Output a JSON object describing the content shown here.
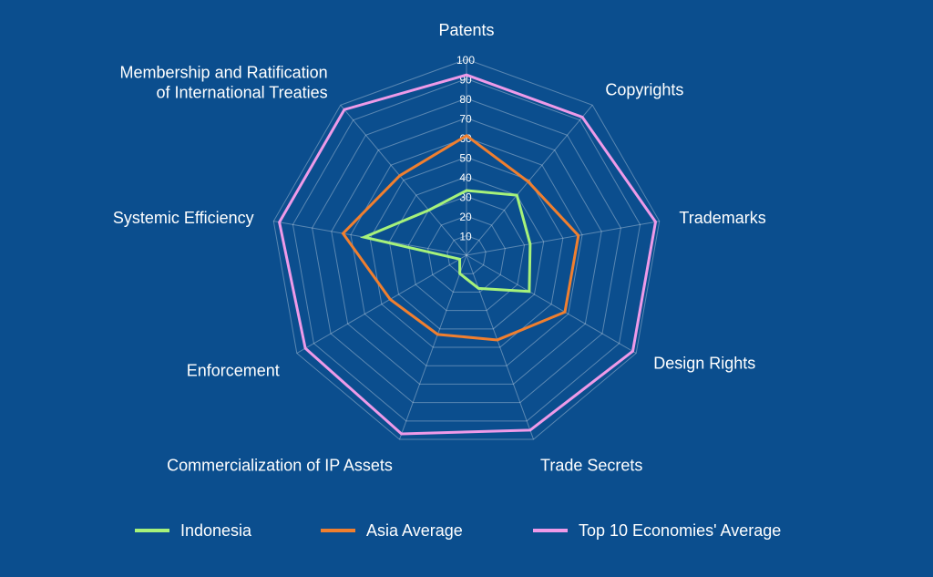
{
  "chart_data": {
    "type": "radar",
    "axes": [
      "Patents",
      "Copyrights",
      "Trademarks",
      "Design Rights",
      "Trade Secrets",
      "Commercialization of IP Assets",
      "Enforcement",
      "Systemic Efficiency",
      "Membership and Ratification\nof International Treaties"
    ],
    "rlim": [
      0,
      100
    ],
    "ticks": [
      "10",
      "20",
      "30",
      "40",
      "50",
      "60",
      "70",
      "80",
      "90",
      "100"
    ],
    "grid": true,
    "legend_position": "bottom",
    "series": [
      {
        "name": "Indonesia",
        "color": "#a6f27a",
        "values": [
          33,
          40,
          33,
          37,
          18,
          10,
          4,
          53,
          30
        ]
      },
      {
        "name": "Asia Average",
        "color": "#f07f2f",
        "values": [
          61,
          49,
          58,
          58,
          46,
          43,
          45,
          64,
          53
        ]
      },
      {
        "name": "Top 10 Economies' Average",
        "color": "#ee9ae8",
        "values": [
          92,
          92,
          98,
          98,
          95,
          97,
          95,
          97,
          97
        ]
      }
    ]
  }
}
